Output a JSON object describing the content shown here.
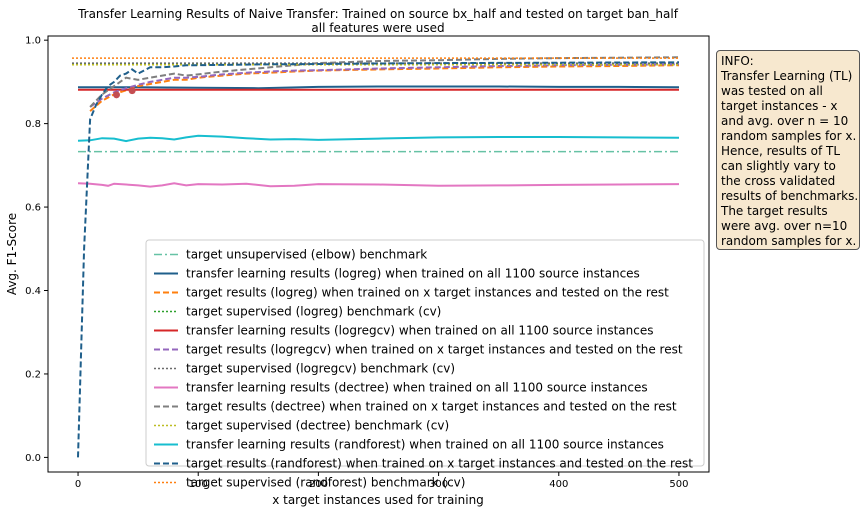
{
  "chart_data": {
    "type": "line",
    "title": "Transfer Learning Results of Naive Transfer: Trained on source bx_half and tested on target ban_half",
    "subtitle": "all features were used",
    "xlabel": "x target instances used for training",
    "ylabel": "Avg. F1-Score",
    "xlim": [
      -25,
      525
    ],
    "ylim": [
      -0.035,
      1.01
    ],
    "xticks": [
      0,
      100,
      200,
      300,
      400,
      500
    ],
    "yticks": [
      0.0,
      0.2,
      0.4,
      0.6,
      0.8,
      1.0
    ],
    "xtick_labels": [
      "0",
      "100",
      "200",
      "300",
      "400",
      "500"
    ],
    "ytick_labels": [
      "0.0",
      "0.2",
      "0.4",
      "0.6",
      "0.8",
      "1.0"
    ],
    "legend_position": "lower right",
    "series": [
      {
        "name": "target unsupervised (elbow) benchmark",
        "color": "#66c2a5",
        "style": "dashdot",
        "width": 1.5,
        "x": [
          0,
          500
        ],
        "y": [
          0.733,
          0.733
        ]
      },
      {
        "name": "transfer learning results (logreg) when trained on all 1100 source instances",
        "color": "#1f5f8b",
        "style": "solid",
        "width": 2,
        "x": [
          0,
          50,
          100,
          150,
          200,
          250,
          300,
          350,
          400,
          450,
          500
        ],
        "y": [
          0.887,
          0.887,
          0.886,
          0.885,
          0.888,
          0.889,
          0.889,
          0.889,
          0.888,
          0.888,
          0.887
        ]
      },
      {
        "name": "target results (logreg) when trained on x target instances and tested on the rest",
        "color": "#ff7f0e",
        "style": "dashed",
        "width": 2,
        "x": [
          10,
          20,
          30,
          40,
          50,
          60,
          70,
          80,
          90,
          100,
          120,
          140,
          160,
          180,
          200,
          250,
          300,
          350,
          400,
          450,
          500
        ],
        "y": [
          0.83,
          0.855,
          0.87,
          0.88,
          0.89,
          0.895,
          0.9,
          0.905,
          0.905,
          0.91,
          0.915,
          0.92,
          0.922,
          0.925,
          0.927,
          0.93,
          0.932,
          0.935,
          0.937,
          0.938,
          0.94
        ]
      },
      {
        "name": "target supervised (logreg) benchmark (cv)",
        "color": "#2ca02c",
        "style": "dotted",
        "width": 1.5,
        "x": [
          -5,
          500
        ],
        "y": [
          0.943,
          0.943
        ]
      },
      {
        "name": "transfer learning results (logregcv) when trained on all 1100 source instances",
        "color": "#d62728",
        "style": "solid",
        "width": 2,
        "x": [
          0,
          100,
          200,
          300,
          400,
          500
        ],
        "y": [
          0.881,
          0.881,
          0.881,
          0.881,
          0.881,
          0.881
        ]
      },
      {
        "name": "target results (logregcv) when trained on x target instances and tested on the rest",
        "color": "#9467bd",
        "style": "dashed",
        "width": 2,
        "x": [
          10,
          20,
          30,
          40,
          50,
          60,
          70,
          80,
          90,
          100,
          120,
          140,
          160,
          180,
          200,
          250,
          300,
          350,
          400,
          450,
          500
        ],
        "y": [
          0.84,
          0.86,
          0.875,
          0.885,
          0.893,
          0.9,
          0.905,
          0.91,
          0.91,
          0.912,
          0.918,
          0.922,
          0.925,
          0.927,
          0.928,
          0.932,
          0.935,
          0.938,
          0.94,
          0.941,
          0.942
        ]
      },
      {
        "name": "target supervised (logregcv) benchmark (cv)",
        "color": "#6b6b6b",
        "style": "dotted",
        "width": 1.5,
        "x": [
          -5,
          500
        ],
        "y": [
          0.945,
          0.945
        ]
      },
      {
        "name": "transfer learning results (dectree) when trained on all 1100 source instances",
        "color": "#e377c2",
        "style": "solid",
        "width": 2,
        "x": [
          0,
          10,
          20,
          25,
          30,
          40,
          50,
          60,
          70,
          80,
          90,
          100,
          120,
          140,
          160,
          180,
          200,
          250,
          300,
          350,
          400,
          450,
          500
        ],
        "y": [
          0.657,
          0.656,
          0.653,
          0.651,
          0.656,
          0.654,
          0.652,
          0.649,
          0.652,
          0.657,
          0.652,
          0.655,
          0.654,
          0.656,
          0.65,
          0.651,
          0.655,
          0.654,
          0.651,
          0.652,
          0.653,
          0.654,
          0.655
        ]
      },
      {
        "name": "target results (dectree) when trained on x target instances and tested on the rest",
        "color": "#7f7f7f",
        "style": "dashed",
        "width": 2,
        "x": [
          10,
          20,
          30,
          40,
          50,
          60,
          70,
          80,
          90,
          100,
          120,
          140,
          160,
          180,
          200,
          250,
          300,
          350,
          400,
          450,
          500
        ],
        "y": [
          0.84,
          0.87,
          0.89,
          0.91,
          0.905,
          0.91,
          0.915,
          0.92,
          0.915,
          0.918,
          0.925,
          0.93,
          0.935,
          0.94,
          0.945,
          0.95,
          0.952,
          0.955,
          0.957,
          0.958,
          0.959
        ]
      },
      {
        "name": "target supervised (dectree) benchmark (cv)",
        "color": "#bcbd22",
        "style": "dotted",
        "width": 1.5,
        "x": [
          -5,
          500
        ],
        "y": [
          0.941,
          0.941
        ]
      },
      {
        "name": "transfer learning results (randforest) when trained on all 1100 source instances",
        "color": "#17becf",
        "style": "solid",
        "width": 2,
        "x": [
          0,
          10,
          20,
          30,
          40,
          50,
          60,
          70,
          80,
          90,
          100,
          120,
          140,
          160,
          180,
          200,
          250,
          300,
          350,
          400,
          450,
          500
        ],
        "y": [
          0.759,
          0.76,
          0.765,
          0.764,
          0.758,
          0.764,
          0.766,
          0.765,
          0.762,
          0.767,
          0.771,
          0.769,
          0.765,
          0.762,
          0.763,
          0.761,
          0.764,
          0.767,
          0.768,
          0.768,
          0.767,
          0.766
        ]
      },
      {
        "name": "target results (randforest) when trained on x target instances and tested on the rest",
        "color": "#1f5f8b",
        "style": "dashed",
        "width": 2,
        "x": [
          0,
          5,
          10,
          15,
          20,
          25,
          30,
          35,
          40,
          45,
          50,
          60,
          70,
          80,
          90,
          100,
          150,
          200,
          250,
          300,
          400,
          500
        ],
        "y": [
          0.0,
          0.5,
          0.81,
          0.845,
          0.87,
          0.89,
          0.9,
          0.915,
          0.92,
          0.93,
          0.92,
          0.935,
          0.935,
          0.937,
          0.94,
          0.94,
          0.942,
          0.943,
          0.944,
          0.945,
          0.946,
          0.947
        ]
      },
      {
        "name": "target supervised (randforest) benchmark (cv)",
        "color": "#ff7f0e",
        "style": "dotted",
        "width": 1.5,
        "x": [
          -5,
          500
        ],
        "y": [
          0.957,
          0.957
        ]
      }
    ],
    "markers": [
      {
        "x": 32,
        "y": 0.869,
        "color": "#c44e52"
      },
      {
        "x": 45,
        "y": 0.879,
        "color": "#c44e52"
      }
    ]
  },
  "info_box": {
    "lines": [
      "INFO:",
      "Transfer Learning (TL)",
      "was tested on all",
      "target instances - x",
      "and avg. over n = 10",
      "random samples for x.",
      "Hence, results of TL",
      "can slightly vary to",
      "the cross validated",
      "results of benchmarks.",
      "The target results",
      "were avg. over n=10",
      "random samples for x."
    ]
  }
}
